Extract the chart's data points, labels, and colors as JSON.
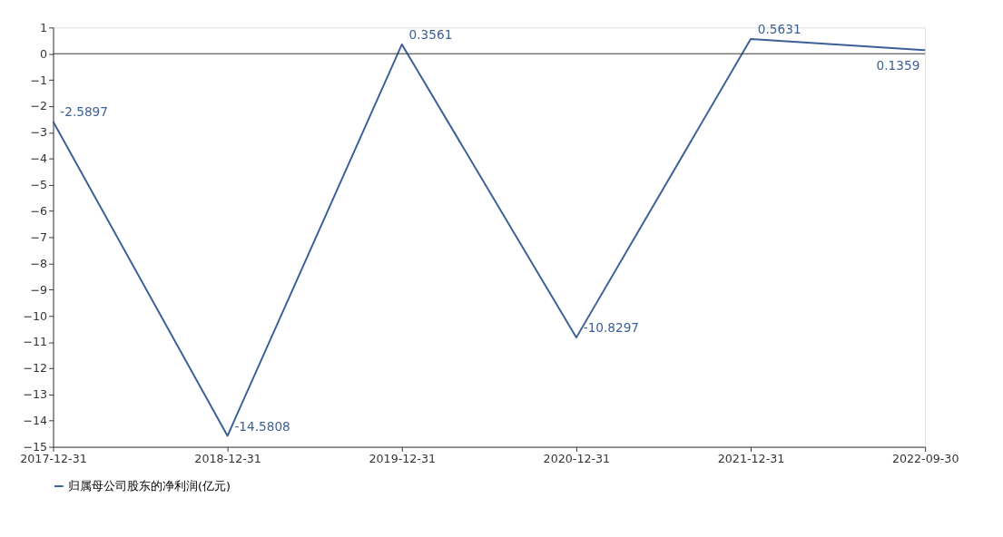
{
  "chart_data": {
    "type": "line",
    "categories": [
      "2017-12-31",
      "2018-12-31",
      "2019-12-31",
      "2020-12-31",
      "2021-12-31",
      "2022-09-30"
    ],
    "series": [
      {
        "name": "归属母公司股东的净利润(亿元)",
        "color": "#3c5f96",
        "values": [
          -2.5897,
          -14.5808,
          0.3561,
          -10.8297,
          0.5631,
          0.1359
        ]
      }
    ],
    "ylim": [
      -15,
      1
    ],
    "yticks": [
      -15,
      -14,
      -13,
      -12,
      -11,
      -10,
      -9,
      -8,
      -7,
      -6,
      -5,
      -4,
      -3,
      -2,
      -1,
      0,
      1
    ],
    "ref_lines": [
      {
        "axis": "y",
        "value": 0,
        "color": "#333333"
      }
    ],
    "data_labels": true,
    "grid": false,
    "legend": "bottom",
    "marker": "none",
    "line_style": "solid"
  }
}
